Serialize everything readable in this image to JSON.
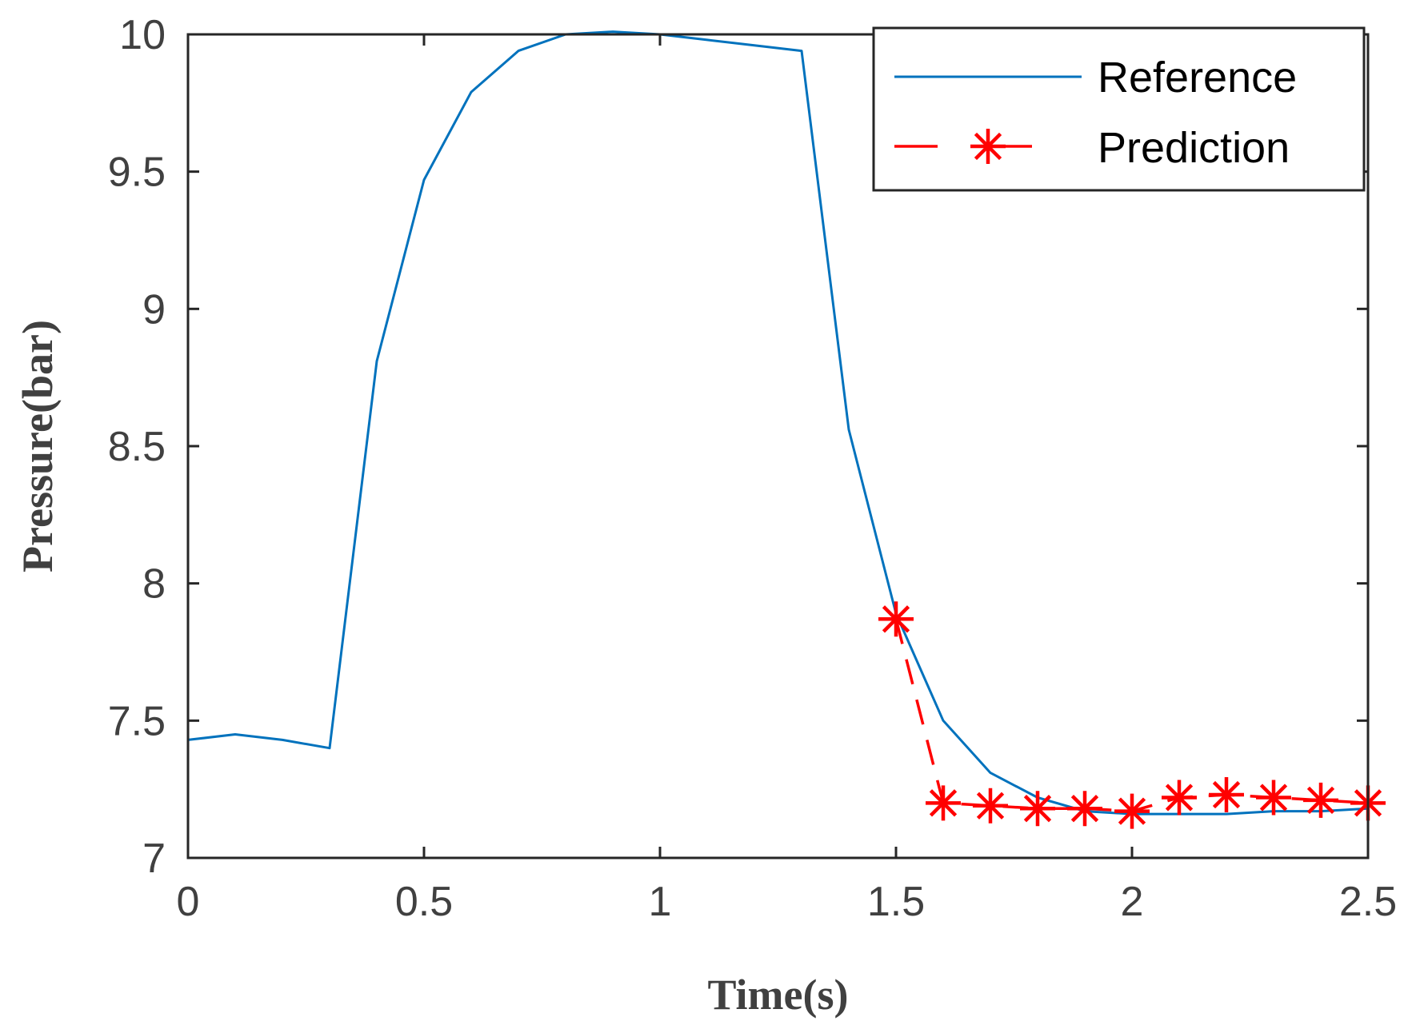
{
  "chart_data": {
    "type": "line",
    "title": "",
    "xlabel": "Time(s)",
    "ylabel": "Pressure(bar)",
    "xlim": [
      0,
      2.5
    ],
    "ylim": [
      7,
      10
    ],
    "xticks": [
      0,
      0.5,
      1,
      1.5,
      2,
      2.5
    ],
    "xtick_labels": [
      "0",
      "0.5",
      "1",
      "1.5",
      "2",
      "2.5"
    ],
    "yticks": [
      7,
      7.5,
      8,
      8.5,
      9,
      9.5,
      10
    ],
    "ytick_labels": [
      "7",
      "7.5",
      "8",
      "8.5",
      "9",
      "9.5",
      "10"
    ],
    "grid": false,
    "legend_position": "top-right",
    "series": [
      {
        "name": "Reference",
        "color": "#0072BD",
        "style": "solid",
        "marker": "none",
        "x": [
          0,
          0.1,
          0.2,
          0.3,
          0.4,
          0.5,
          0.6,
          0.7,
          0.8,
          0.9,
          1.0,
          1.1,
          1.2,
          1.3,
          1.4,
          1.5,
          1.6,
          1.7,
          1.8,
          1.9,
          2.0,
          2.1,
          2.2,
          2.3,
          2.4,
          2.5
        ],
        "y": [
          7.43,
          7.45,
          7.43,
          7.4,
          8.81,
          9.47,
          9.79,
          9.94,
          10.0,
          10.01,
          10.0,
          9.98,
          9.96,
          9.94,
          8.56,
          7.89,
          7.5,
          7.31,
          7.22,
          7.17,
          7.16,
          7.16,
          7.16,
          7.17,
          7.17,
          7.18
        ]
      },
      {
        "name": "Prediction",
        "color": "#FF0000",
        "style": "dashed",
        "marker": "asterisk",
        "x": [
          1.5,
          1.6,
          1.7,
          1.8,
          1.9,
          2.0,
          2.1,
          2.2,
          2.3,
          2.4,
          2.5
        ],
        "y": [
          7.87,
          7.2,
          7.19,
          7.18,
          7.18,
          7.17,
          7.22,
          7.23,
          7.22,
          7.21,
          7.2
        ]
      }
    ]
  }
}
